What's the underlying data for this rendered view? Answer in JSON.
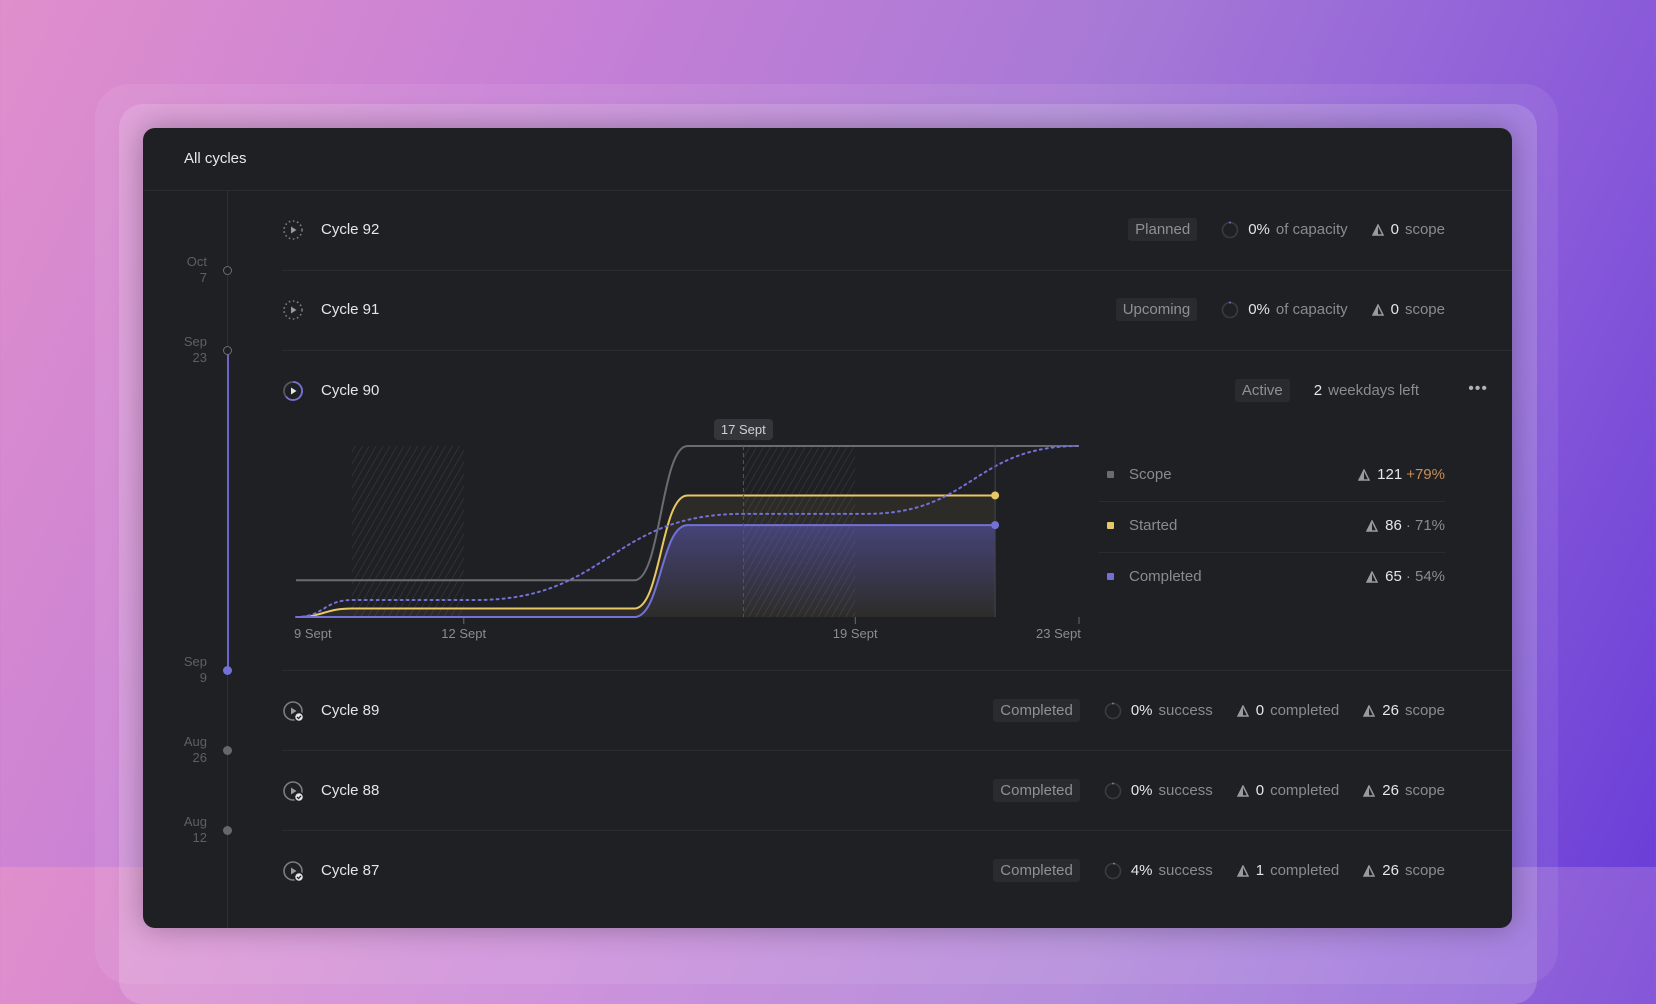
{
  "header": {
    "title": "All cycles"
  },
  "timeline": {
    "dates": [
      {
        "month": "Oct",
        "day": "7"
      },
      {
        "month": "Sep",
        "day": "23"
      },
      {
        "month": "Sep",
        "day": "9"
      },
      {
        "month": "Aug",
        "day": "26"
      },
      {
        "month": "Aug",
        "day": "12"
      }
    ]
  },
  "colors": {
    "accent": "#7370d8",
    "started": "#e8c766",
    "scope": "#6b6c72",
    "delta_positive": "#c58d5a"
  },
  "cycles": [
    {
      "name": "Cycle 92",
      "status": "Planned",
      "icon": "planned-cycle-icon",
      "pct": "0%",
      "pct_label": "of capacity",
      "scope": "0",
      "scope_label": "scope"
    },
    {
      "name": "Cycle 91",
      "status": "Upcoming",
      "icon": "planned-cycle-icon",
      "pct": "0%",
      "pct_label": "of capacity",
      "scope": "0",
      "scope_label": "scope"
    },
    {
      "name": "Cycle 90",
      "status": "Active",
      "icon": "active-cycle-icon",
      "days_left": "2",
      "days_left_label": "weekdays left",
      "more": "•••"
    },
    {
      "name": "Cycle 89",
      "status": "Completed",
      "icon": "completed-cycle-icon",
      "pct": "0%",
      "pct_label": "success",
      "completed": "0",
      "completed_label": "completed",
      "scope": "26",
      "scope_label": "scope"
    },
    {
      "name": "Cycle 88",
      "status": "Completed",
      "icon": "completed-cycle-icon",
      "pct": "0%",
      "pct_label": "success",
      "completed": "0",
      "completed_label": "completed",
      "scope": "26",
      "scope_label": "scope"
    },
    {
      "name": "Cycle 87",
      "status": "Completed",
      "icon": "completed-cycle-icon",
      "pct": "4%",
      "pct_label": "success",
      "completed": "1",
      "completed_label": "completed",
      "scope": "26",
      "scope_label": "scope"
    }
  ],
  "legend": [
    {
      "label": "Scope",
      "value": "121",
      "extra": "+79%",
      "color": "#6b6c72"
    },
    {
      "label": "Started",
      "value": "86",
      "extra": "· 71%",
      "color": "#e8c766"
    },
    {
      "label": "Completed",
      "value": "65",
      "extra": "· 54%",
      "color": "#7370d8"
    }
  ],
  "chart_data": {
    "type": "line",
    "x_unit": "day of September",
    "xlim": [
      9,
      23
    ],
    "ylim": [
      0,
      121
    ],
    "x_ticks": [
      {
        "day": 9,
        "label": "9 Sept"
      },
      {
        "day": 12,
        "label": "12 Sept"
      },
      {
        "day": 19,
        "label": "19 Sept"
      },
      {
        "day": 23,
        "label": "23 Sept"
      }
    ],
    "hover_marker": {
      "day": 17,
      "label": "17 Sept"
    },
    "today": 21.5,
    "shaded_ranges": [
      [
        10,
        12
      ],
      [
        17,
        19
      ]
    ],
    "grid": false,
    "series": [
      {
        "name": "Scope",
        "color": "#6b6c72",
        "style": "solid",
        "points": [
          [
            9,
            26
          ],
          [
            15.05,
            26
          ],
          [
            16,
            121
          ],
          [
            23,
            121
          ]
        ]
      },
      {
        "name": "Started",
        "color": "#e8c766",
        "style": "solid",
        "points": [
          [
            9,
            0
          ],
          [
            10,
            6
          ],
          [
            15.05,
            6
          ],
          [
            16,
            86
          ],
          [
            21.5,
            86
          ]
        ]
      },
      {
        "name": "Completed",
        "color": "#7370d8",
        "style": "solid",
        "points": [
          [
            9,
            0
          ],
          [
            15.05,
            0
          ],
          [
            16,
            65
          ],
          [
            21.5,
            65
          ]
        ]
      },
      {
        "style": "dotted",
        "color": "#7370d8",
        "points": [
          [
            9,
            0
          ],
          [
            10,
            12
          ],
          [
            12.2,
            12
          ],
          [
            17,
            73
          ],
          [
            19.2,
            73
          ],
          [
            23,
            121
          ]
        ]
      }
    ]
  }
}
